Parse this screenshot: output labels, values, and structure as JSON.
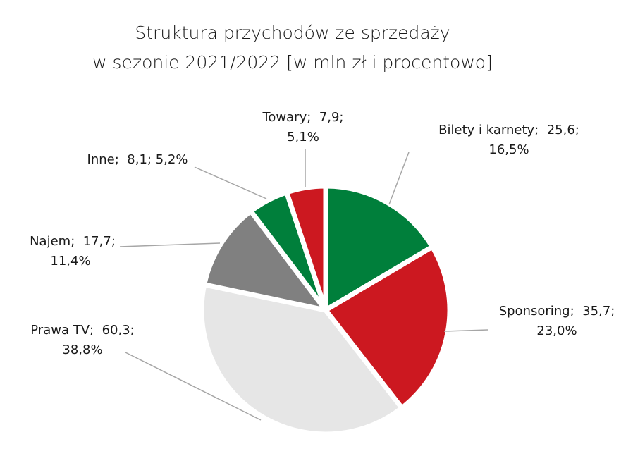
{
  "chart_data": {
    "type": "pie",
    "title": [
      "Struktura przychodów ze sprzedaży",
      "w sezonie 2021/2022 [w mln zł i procentowo]"
    ],
    "categories": [
      "Bilety i karnety",
      "Sponsoring",
      "Prawa TV",
      "Najem",
      "Inne",
      "Towary"
    ],
    "values": [
      25.6,
      35.7,
      60.3,
      17.7,
      8.1,
      7.9
    ],
    "value_labels": [
      "25,6",
      "35,7",
      "60,3",
      "17,7",
      "8,1",
      "7,9"
    ],
    "percentages": [
      16.5,
      23.0,
      38.8,
      11.4,
      5.2,
      5.1
    ],
    "percentage_labels": [
      "16,5%",
      "23,0%",
      "38,8%",
      "11,4%",
      "5,2%",
      "5,1%"
    ],
    "label_separator": ";",
    "colors": [
      "#007f3b",
      "#cc1820",
      "#e6e6e6",
      "#808080",
      "#007f3b",
      "#cc1820"
    ]
  }
}
